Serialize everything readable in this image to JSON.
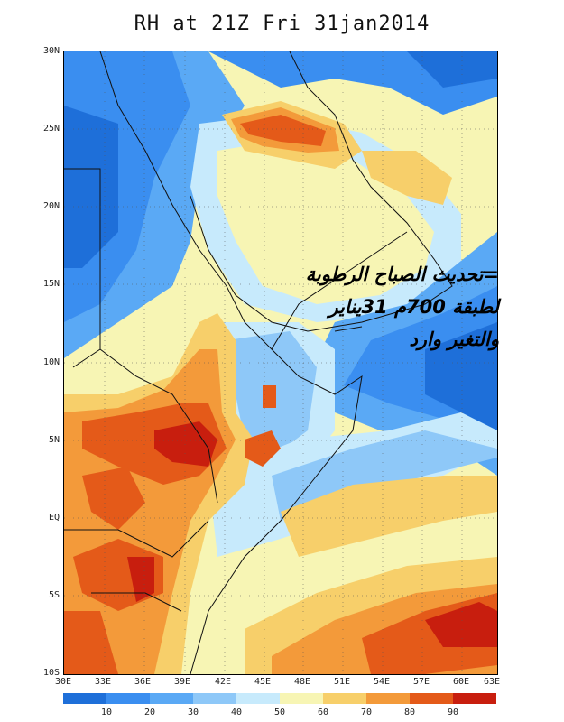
{
  "title": "RH at 21Z Fri 31jan2014",
  "lat_labels": [
    "30N",
    "25N",
    "20N",
    "15N",
    "10N",
    "5N",
    "EQ",
    "5S",
    "10S"
  ],
  "lon_labels": [
    "30E",
    "33E",
    "36E",
    "39E",
    "42E",
    "45E",
    "48E",
    "51E",
    "54E",
    "57E",
    "60E",
    "63E"
  ],
  "colorbar": {
    "colors": [
      "#1e6fd9",
      "#3a8ef0",
      "#5aa9f5",
      "#8ec8f8",
      "#c7eafc",
      "#f7f5b4",
      "#f7cf6a",
      "#f39a3a",
      "#e45a19",
      "#c81e0e"
    ],
    "ticks": [
      "10",
      "20",
      "30",
      "40",
      "50",
      "60",
      "70",
      "80",
      "90"
    ]
  },
  "overlay_text": [
    "=تحديث الصباح الرطوبة",
    "لطبقة 700م 31يناير",
    "والتغير وارد"
  ]
}
